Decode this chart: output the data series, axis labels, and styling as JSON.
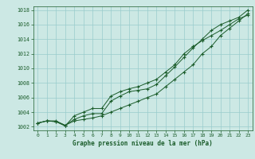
{
  "xlabel": "Graphe pression niveau de la mer (hPa)",
  "background_color": "#cce8e4",
  "grid_color": "#99cccc",
  "line_color": "#1a5c2a",
  "ylim": [
    1001.5,
    1018.5
  ],
  "xlim": [
    -0.5,
    23.5
  ],
  "yticks": [
    1002,
    1004,
    1006,
    1008,
    1010,
    1012,
    1014,
    1016,
    1018
  ],
  "xticks": [
    0,
    1,
    2,
    3,
    4,
    5,
    6,
    7,
    8,
    9,
    10,
    11,
    12,
    13,
    14,
    15,
    16,
    17,
    18,
    19,
    20,
    21,
    22,
    23
  ],
  "series": [
    [
      1002.5,
      1002.8,
      1002.8,
      1002.2,
      1002.8,
      1003.0,
      1003.2,
      1003.5,
      1004.0,
      1004.5,
      1005.0,
      1005.5,
      1006.0,
      1006.5,
      1007.5,
      1008.5,
      1009.5,
      1010.5,
      1012.0,
      1013.0,
      1014.5,
      1015.5,
      1016.5,
      1017.5
    ],
    [
      1002.5,
      1002.8,
      1002.7,
      1002.2,
      1003.0,
      1003.5,
      1003.8,
      1003.8,
      1005.5,
      1006.2,
      1006.8,
      1007.0,
      1007.2,
      1007.8,
      1009.0,
      1010.2,
      1011.5,
      1012.8,
      1014.0,
      1015.2,
      1016.0,
      1016.5,
      1017.0,
      1018.0
    ],
    [
      1002.5,
      1002.8,
      1002.7,
      1002.1,
      1003.5,
      1004.0,
      1004.5,
      1004.5,
      1006.2,
      1006.8,
      1007.2,
      1007.5,
      1008.0,
      1008.5,
      1009.5,
      1010.5,
      1012.0,
      1013.0,
      1013.8,
      1014.5,
      1015.2,
      1016.0,
      1016.8,
      1017.3
    ]
  ]
}
